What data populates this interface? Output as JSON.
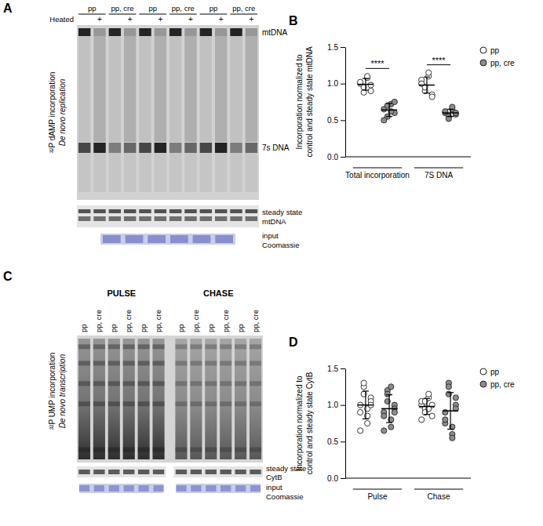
{
  "panels": {
    "A": {
      "letter": "A",
      "ylabel": [
        "³²P dAMP incorporation",
        "De novo replication"
      ],
      "lane_groups": [
        "pp",
        "pp, cre",
        "pp",
        "pp, cre",
        "pp",
        "pp, cre"
      ],
      "heated_label": "Heated",
      "heated_mark": "+",
      "bands": [
        "mtDNA",
        "7s DNA"
      ],
      "steady_state": [
        "steady state",
        "mtDNA"
      ],
      "input": [
        "input",
        "Coomassie"
      ]
    },
    "C": {
      "letter": "C",
      "ylabel": [
        "³²P UMP incorporation",
        "De novo transcription"
      ],
      "conditions": [
        "PULSE",
        "CHASE"
      ],
      "lanes": [
        "pp",
        "pp, cre",
        "pp",
        "pp, cre",
        "pp",
        "pp, cre"
      ],
      "steady_state": [
        "steady state",
        "CytB"
      ],
      "input": [
        "input",
        "Coomassie"
      ]
    }
  },
  "chart_data": [
    {
      "letter": "B",
      "type": "scatter",
      "ylabel": [
        "Incorporation normalized to",
        "control and steady state mtDNA"
      ],
      "categories": [
        "Total incorporation",
        "7S DNA"
      ],
      "ylim": [
        0,
        1.5
      ],
      "yticks": [
        {
          "value": 0,
          "label": "0.0"
        },
        {
          "value": 0.5,
          "label": "0.5"
        },
        {
          "value": 1,
          "label": "1.0"
        },
        {
          "value": 1.5,
          "label": "1.5"
        }
      ],
      "legend": "right",
      "significance": [
        "****",
        "****"
      ],
      "series": [
        {
          "name": "pp",
          "color": "#ffffff",
          "marker": "circle",
          "values": [
            [
              1.0,
              0.95,
              1.08,
              0.9,
              1.02,
              0.88,
              1.1,
              0.98
            ],
            [
              1.0,
              0.9,
              1.1,
              0.85,
              1.05,
              0.95,
              1.15,
              0.82,
              1.0
            ]
          ],
          "mean": [
            0.99,
            0.98
          ],
          "sd": [
            0.08,
            0.11
          ]
        },
        {
          "name": "pp, cre",
          "color": "#8c8c8c",
          "marker": "circle",
          "values": [
            [
              0.65,
              0.55,
              0.72,
              0.6,
              0.5,
              0.7,
              0.62,
              0.75
            ],
            [
              0.6,
              0.55,
              0.65,
              0.58,
              0.62,
              0.52,
              0.68,
              0.6
            ]
          ],
          "mean": [
            0.64,
            0.6
          ],
          "sd": [
            0.09,
            0.05
          ]
        }
      ]
    },
    {
      "letter": "D",
      "type": "scatter",
      "ylabel": [
        "Incorporation normalized to",
        "control and steady state CytB"
      ],
      "categories": [
        "Pulse",
        "Chase"
      ],
      "ylim": [
        0,
        1.5
      ],
      "yticks": [
        {
          "value": 0,
          "label": "0.0"
        },
        {
          "value": 0.5,
          "label": "0.5"
        },
        {
          "value": 1,
          "label": "1.0"
        },
        {
          "value": 1.5,
          "label": "1.5"
        }
      ],
      "legend": "right",
      "series": [
        {
          "name": "pp",
          "color": "#ffffff",
          "marker": "circle",
          "values": [
            [
              1.0,
              1.25,
              0.75,
              1.1,
              0.9,
              1.3,
              0.85,
              1.05,
              0.65,
              1.15,
              0.95,
              1.0
            ],
            [
              1.0,
              0.95,
              1.1,
              0.85,
              1.05,
              0.9,
              1.15,
              1.0,
              0.8,
              1.05,
              0.95
            ]
          ],
          "mean": [
            1.0,
            0.98
          ],
          "sd": [
            0.19,
            0.11
          ]
        },
        {
          "name": "pp, cre",
          "color": "#8c8c8c",
          "marker": "circle",
          "values": [
            [
              0.9,
              1.2,
              0.7,
              1.0,
              0.85,
              1.15,
              0.8,
              0.95,
              0.65,
              1.05,
              1.25,
              0.9
            ],
            [
              0.9,
              1.3,
              0.6,
              1.1,
              0.75,
              1.25,
              0.55,
              1.0,
              0.8,
              1.15,
              0.7,
              0.95
            ]
          ],
          "mean": [
            0.95,
            0.92
          ],
          "sd": [
            0.19,
            0.25
          ]
        }
      ]
    }
  ]
}
